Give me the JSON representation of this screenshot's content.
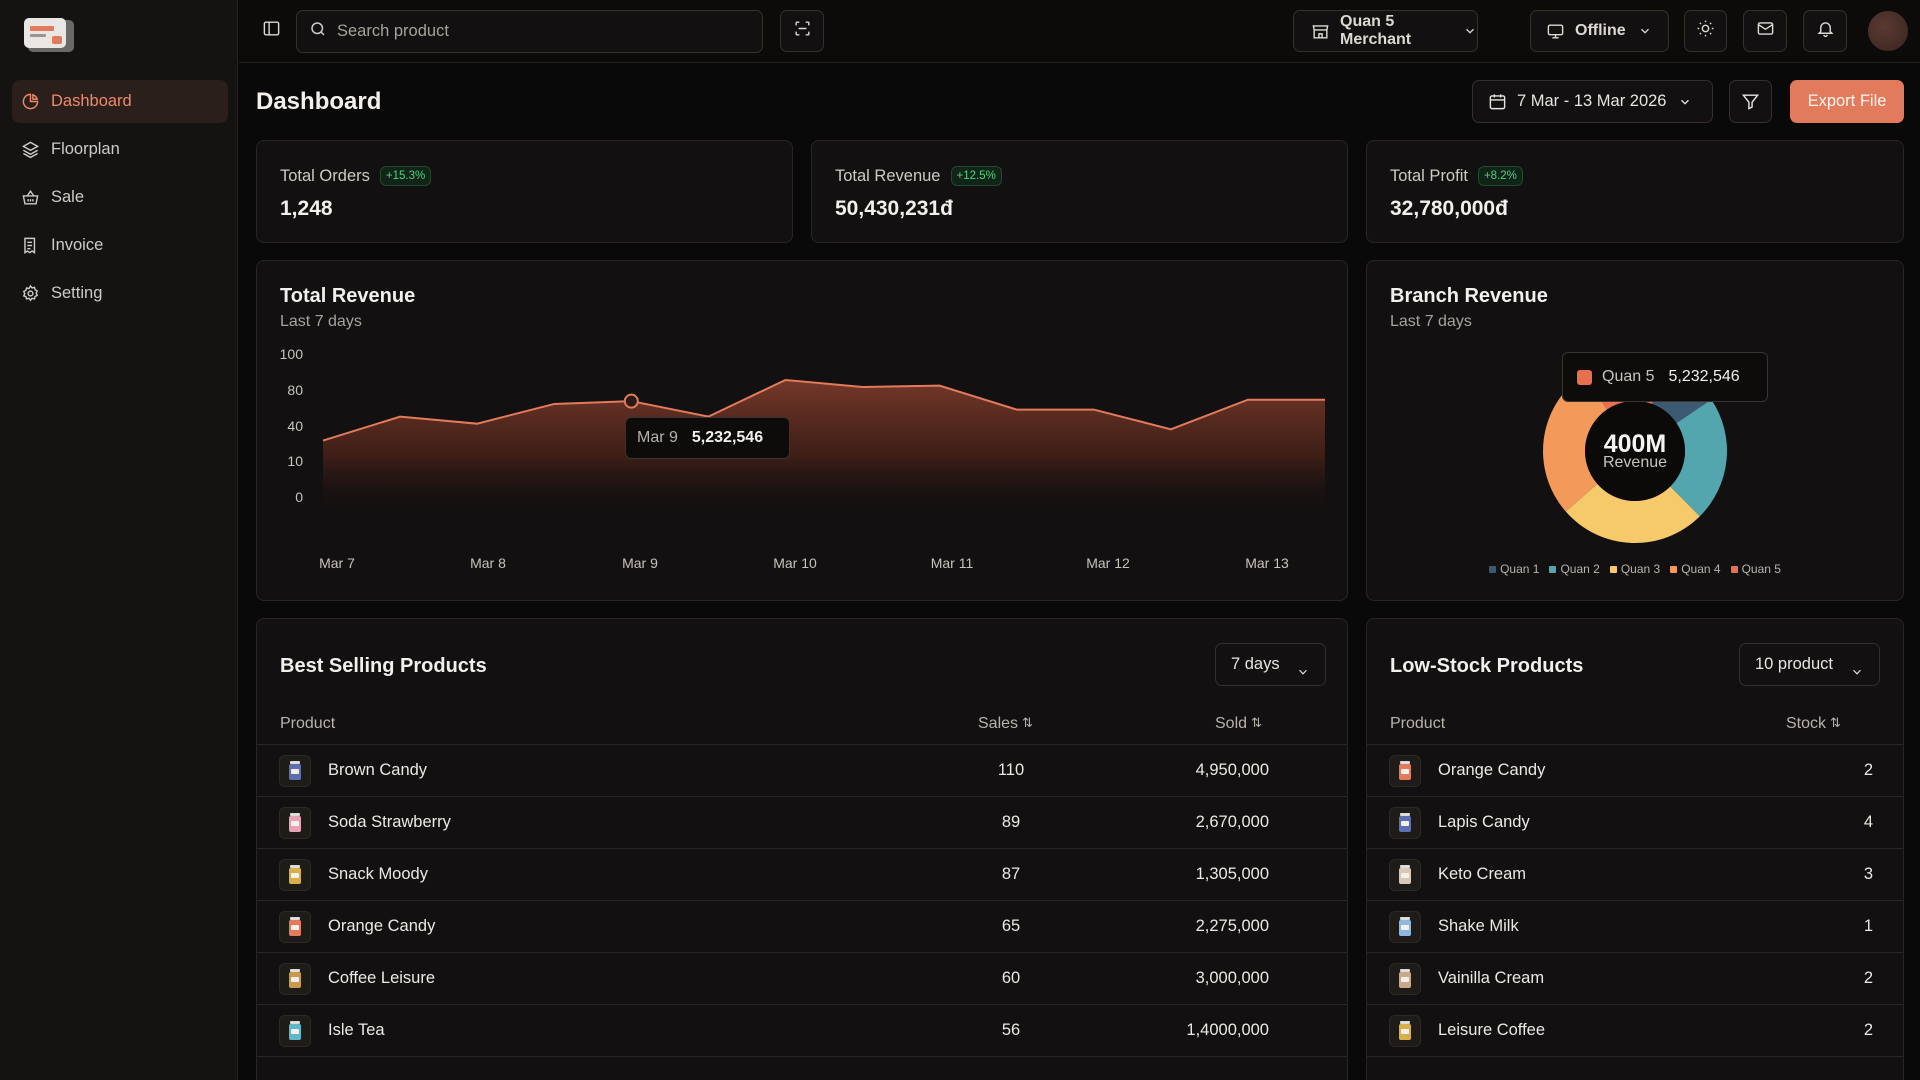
{
  "sidebar": {
    "items": [
      {
        "label": "Dashboard",
        "icon": "pie-chart-icon"
      },
      {
        "label": "Floorplan",
        "icon": "layers-icon"
      },
      {
        "label": "Sale",
        "icon": "basket-icon"
      },
      {
        "label": "Invoice",
        "icon": "receipt-icon"
      },
      {
        "label": "Setting",
        "icon": "gear-icon"
      }
    ]
  },
  "topbar": {
    "search_placeholder": "Search product",
    "merchant_label": "Quan 5 Merchant",
    "status_label": "Offline"
  },
  "header": {
    "title": "Dashboard",
    "date_range": "7 Mar - 13 Mar 2026",
    "export_label": "Export File"
  },
  "stats": [
    {
      "label": "Total Orders",
      "badge": "+15.3%",
      "value": "1,248"
    },
    {
      "label": "Total Revenue",
      "badge": "+12.5%",
      "value": "50,430,231đ"
    },
    {
      "label": "Total Profit",
      "badge": "+8.2%",
      "value": "32,780,000đ"
    }
  ],
  "revenue_chart": {
    "title": "Total Revenue",
    "subtitle": "Last 7 days",
    "tooltip": {
      "label": "Mar 9",
      "value": "5,232,546"
    }
  },
  "branch_chart": {
    "title": "Branch Revenue",
    "subtitle": "Last 7 days",
    "center_value": "400M",
    "center_label": "Revenue",
    "tooltip": {
      "label": "Quan 5",
      "value": "5,232,546"
    }
  },
  "chart_data": [
    {
      "type": "area",
      "title": "Total Revenue",
      "subtitle": "Last 7 days",
      "y_ticks": [
        "100",
        "80",
        "40",
        "10",
        "0"
      ],
      "categories": [
        "Mar 7",
        "Mar 8",
        "Mar 9",
        "Mar 10",
        "Mar 11",
        "Mar 12",
        "Mar 13"
      ],
      "x": [
        0,
        0.5,
        1,
        1.5,
        2,
        2.5,
        3,
        3.5,
        4,
        4.5,
        5,
        5.5,
        6,
        6.5
      ],
      "values": [
        40,
        57,
        52,
        66,
        68,
        57,
        83,
        78,
        79,
        62,
        62,
        48,
        69,
        69
      ],
      "highlight": {
        "category": "Mar 9",
        "value": "5,232,546"
      },
      "color": "#e27a5c"
    },
    {
      "type": "pie",
      "title": "Branch Revenue",
      "subtitle": "Last 7 days",
      "labels": [
        "Quan 1",
        "Quan 2",
        "Quan 3",
        "Quan 4",
        "Quan 5"
      ],
      "values": [
        10,
        22,
        26,
        27,
        15
      ],
      "colors": [
        "#3d5a73",
        "#53a6ad",
        "#f6c96a",
        "#f39a5a",
        "#e8704f"
      ],
      "legend": "bottom"
    }
  ],
  "best_selling": {
    "title": "Best Selling Products",
    "dropdown": "7 days",
    "columns": {
      "product": "Product",
      "sales": "Sales",
      "sold": "Sold"
    },
    "rows": [
      {
        "name": "Brown Candy",
        "sales": "110",
        "sold": "4,950,000"
      },
      {
        "name": "Soda Strawberry",
        "sales": "89",
        "sold": "2,670,000"
      },
      {
        "name": "Snack Moody",
        "sales": "87",
        "sold": "1,305,000"
      },
      {
        "name": "Orange Candy",
        "sales": "65",
        "sold": "2,275,000"
      },
      {
        "name": "Coffee Leisure",
        "sales": "60",
        "sold": "3,000,000"
      },
      {
        "name": "Isle Tea",
        "sales": "56",
        "sold": "1,4000,000"
      }
    ]
  },
  "low_stock": {
    "title": "Low-Stock Products",
    "dropdown": "10 product",
    "columns": {
      "product": "Product",
      "stock": "Stock"
    },
    "rows": [
      {
        "name": "Orange Candy",
        "stock": "2"
      },
      {
        "name": "Lapis Candy",
        "stock": "4"
      },
      {
        "name": "Keto Cream",
        "stock": "3"
      },
      {
        "name": "Shake Milk",
        "stock": "1"
      },
      {
        "name": "Vainilla Cream",
        "stock": "2"
      },
      {
        "name": "Leisure Coffee",
        "stock": "2"
      }
    ]
  }
}
